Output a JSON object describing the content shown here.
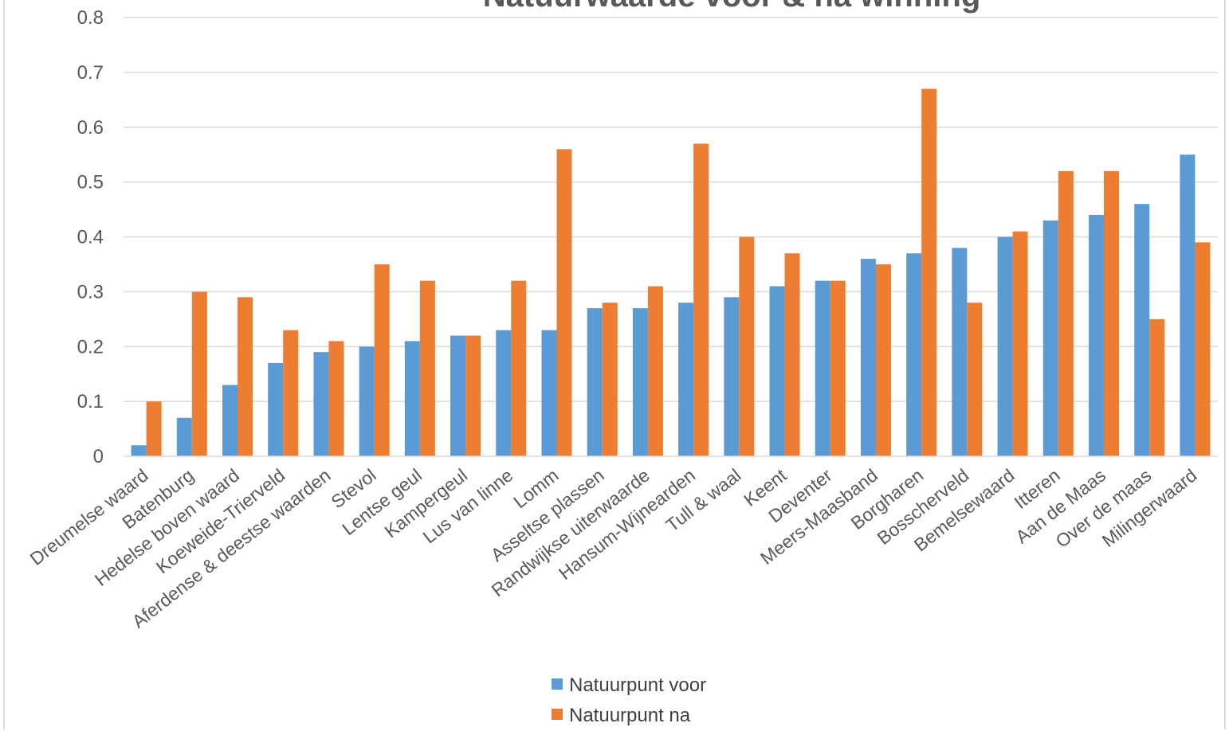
{
  "chart_data": {
    "type": "bar",
    "title": "Natuurwaarde voor & na winning",
    "xlabel": "",
    "ylabel": "",
    "ylim": [
      0,
      0.8
    ],
    "yticks": [
      "0",
      "0.1",
      "0.2",
      "0.3",
      "0.4",
      "0.5",
      "0.6",
      "0.7",
      "0.8"
    ],
    "grid": true,
    "legend_position": "bottom",
    "categories": [
      "Dreumelse waard",
      "Batenburg",
      "Hedelse boven waard",
      "Koeweide-Trierveld",
      "Aferdense & deestse waarden",
      "Stevol",
      "Lentse geul",
      "Kampergeul",
      "Lus van linne",
      "Lomm",
      "Asseltse plassen",
      "Randwijkse uiterwaarde",
      "Hansum-Wijnearden",
      "Tull & waal",
      "Keent",
      "Deventer",
      "Meers-Maasband",
      "Borgharen",
      "Bosscherveld",
      "Bemelsewaard",
      "Itteren",
      "Aan de Maas",
      "Over de maas",
      "Milingerwaard"
    ],
    "series": [
      {
        "name": "Natuurpunt voor",
        "color": "#5b9bd5",
        "values": [
          0.02,
          0.07,
          0.13,
          0.17,
          0.19,
          0.2,
          0.21,
          0.22,
          0.23,
          0.23,
          0.27,
          0.27,
          0.28,
          0.29,
          0.31,
          0.32,
          0.36,
          0.37,
          0.38,
          0.4,
          0.43,
          0.44,
          0.46,
          0.55
        ]
      },
      {
        "name": "Natuurpunt na",
        "color": "#ed7d31",
        "values": [
          0.1,
          0.3,
          0.29,
          0.23,
          0.21,
          0.35,
          0.32,
          0.22,
          0.32,
          0.56,
          0.28,
          0.31,
          0.57,
          0.4,
          0.37,
          0.32,
          0.35,
          0.67,
          0.28,
          0.41,
          0.52,
          0.52,
          0.25,
          0.39
        ]
      }
    ]
  }
}
